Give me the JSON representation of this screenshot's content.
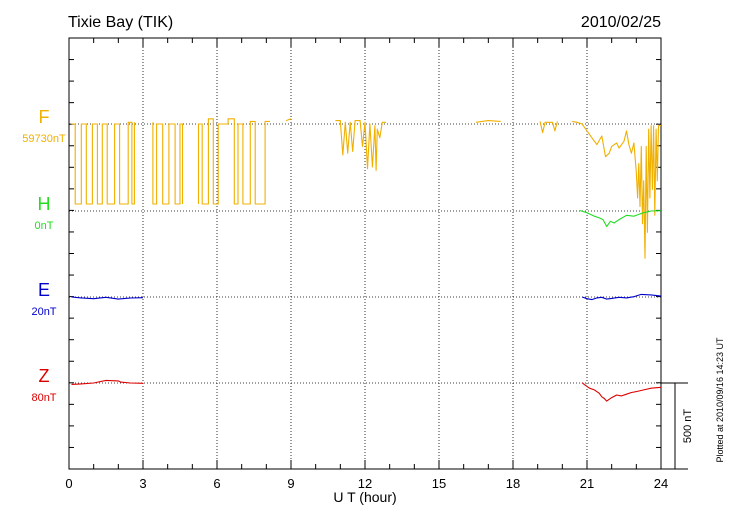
{
  "chart_data": {
    "type": "line",
    "title": "Tixie Bay (TIK)",
    "date": "2010/02/25",
    "xlabel": "U T (hour)",
    "xlim": [
      0,
      24
    ],
    "xticks": [
      0,
      3,
      6,
      9,
      12,
      15,
      18,
      21,
      24
    ],
    "grid": true,
    "footnote": "Plotted at 2010/09/16 14:23 UT",
    "scale_bar": {
      "label": "500 nT",
      "nT": 500
    },
    "series": [
      {
        "name": "F",
        "baseline_label": "59730nT",
        "color": "#f0b000",
        "baseline_nT": 59730,
        "points": [
          [
            0.1,
            59730
          ],
          [
            0.25,
            59730
          ],
          [
            0.25,
            59265
          ],
          [
            0.5,
            59265
          ],
          [
            0.5,
            59730
          ],
          [
            0.7,
            59730
          ],
          [
            0.7,
            59265
          ],
          [
            0.95,
            59265
          ],
          [
            0.95,
            59730
          ],
          [
            1.15,
            59730
          ],
          [
            1.15,
            59265
          ],
          [
            1.35,
            59265
          ],
          [
            1.35,
            59730
          ],
          [
            1.55,
            59730
          ],
          [
            1.55,
            59265
          ],
          [
            1.85,
            59265
          ],
          [
            1.85,
            59730
          ],
          [
            2.05,
            59730
          ],
          [
            2.05,
            59265
          ],
          [
            2.4,
            59265
          ],
          [
            2.4,
            59740
          ],
          [
            2.55,
            59740
          ],
          [
            2.55,
            59265
          ],
          [
            2.65,
            59265
          ],
          [
            2.65,
            59740
          ],
          [
            3.4,
            59740
          ],
          [
            3.4,
            59265
          ],
          [
            3.55,
            59265
          ],
          [
            3.55,
            59730
          ],
          [
            3.8,
            59730
          ],
          [
            3.8,
            59265
          ],
          [
            4.05,
            59265
          ],
          [
            4.05,
            59730
          ],
          [
            4.3,
            59730
          ],
          [
            4.3,
            59265
          ],
          [
            4.5,
            59265
          ],
          [
            4.5,
            59730
          ],
          [
            4.6,
            59730
          ],
          [
            4.6,
            59265
          ],
          [
            5.25,
            59265
          ],
          [
            5.25,
            59730
          ],
          [
            5.4,
            59730
          ],
          [
            5.4,
            59265
          ],
          [
            5.65,
            59265
          ],
          [
            5.65,
            59760
          ],
          [
            5.85,
            59760
          ],
          [
            5.85,
            59265
          ],
          [
            6.05,
            59265
          ],
          [
            6.05,
            59730
          ],
          [
            6.45,
            59730
          ],
          [
            6.45,
            59760
          ],
          [
            6.7,
            59760
          ],
          [
            6.7,
            59265
          ],
          [
            6.85,
            59265
          ],
          [
            6.85,
            59730
          ],
          [
            7.05,
            59730
          ],
          [
            7.05,
            59265
          ],
          [
            7.35,
            59265
          ],
          [
            7.35,
            59745
          ],
          [
            7.55,
            59745
          ],
          [
            7.55,
            59265
          ],
          [
            7.95,
            59265
          ],
          [
            7.95,
            59745
          ],
          [
            8.15,
            59745
          ],
          [
            8.8,
            59750
          ],
          [
            9.0,
            59760
          ],
          [
            10.0,
            59755
          ],
          [
            10.8,
            59750
          ],
          [
            11.0,
            59750
          ],
          [
            11.1,
            59550
          ],
          [
            11.2,
            59740
          ],
          [
            11.3,
            59560
          ],
          [
            11.4,
            59740
          ],
          [
            11.5,
            59570
          ],
          [
            11.6,
            59750
          ],
          [
            11.8,
            59750
          ],
          [
            11.9,
            59600
          ],
          [
            12.0,
            59740
          ],
          [
            12.1,
            59470
          ],
          [
            12.2,
            59730
          ],
          [
            12.3,
            59480
          ],
          [
            12.4,
            59720
          ],
          [
            12.45,
            59460
          ],
          [
            12.5,
            59700
          ],
          [
            12.6,
            59650
          ],
          [
            12.7,
            59740
          ],
          [
            12.85,
            59740
          ],
          [
            13.5,
            59745
          ],
          [
            14.5,
            59740
          ],
          [
            15.5,
            59745
          ],
          [
            16.5,
            59740
          ],
          [
            17.0,
            59750
          ],
          [
            17.5,
            59745
          ],
          [
            18.3,
            59740
          ],
          [
            19.1,
            59745
          ],
          [
            19.2,
            59680
          ],
          [
            19.3,
            59740
          ],
          [
            19.6,
            59740
          ],
          [
            19.7,
            59690
          ],
          [
            19.8,
            59745
          ],
          [
            20.4,
            59745
          ],
          [
            20.6,
            59740
          ],
          [
            20.8,
            59730
          ],
          [
            21.0,
            59690
          ],
          [
            21.2,
            59650
          ],
          [
            21.4,
            59610
          ],
          [
            21.6,
            59660
          ],
          [
            21.75,
            59540
          ],
          [
            21.9,
            59560
          ],
          [
            22.0,
            59600
          ],
          [
            22.2,
            59620
          ],
          [
            22.3,
            59590
          ],
          [
            22.5,
            59630
          ],
          [
            22.6,
            59690
          ],
          [
            22.7,
            59610
          ],
          [
            22.8,
            59560
          ],
          [
            22.9,
            59620
          ],
          [
            23.0,
            59450
          ],
          [
            23.05,
            59300
          ],
          [
            23.1,
            59500
          ],
          [
            23.15,
            59250
          ],
          [
            23.2,
            59600
          ],
          [
            23.25,
            59150
          ],
          [
            23.3,
            59400
          ],
          [
            23.35,
            58950
          ],
          [
            23.4,
            59600
          ],
          [
            23.45,
            59100
          ],
          [
            23.5,
            59700
          ],
          [
            23.55,
            59300
          ],
          [
            23.6,
            59720
          ],
          [
            23.65,
            59350
          ],
          [
            23.7,
            59720
          ],
          [
            23.75,
            59200
          ],
          [
            23.8,
            59700
          ],
          [
            23.85,
            59400
          ],
          [
            23.9,
            59720
          ],
          [
            24.0,
            59720
          ]
        ]
      },
      {
        "name": "H",
        "baseline_label": "0nT",
        "color": "#22dd22",
        "baseline_nT": 0,
        "points": [
          [
            0.1,
            0
          ],
          [
            1.0,
            -2
          ],
          [
            2.0,
            -5
          ],
          [
            3.0,
            -5
          ],
          [
            4.5,
            0
          ],
          [
            6.0,
            0
          ],
          [
            7.5,
            2
          ],
          [
            9.0,
            3
          ],
          [
            10.5,
            5
          ],
          [
            12.0,
            2
          ],
          [
            13.5,
            5
          ],
          [
            15.0,
            2
          ],
          [
            16.5,
            3
          ],
          [
            18.0,
            2
          ],
          [
            19.5,
            0
          ],
          [
            20.7,
            3
          ],
          [
            21.0,
            -10
          ],
          [
            21.3,
            -30
          ],
          [
            21.5,
            -40
          ],
          [
            21.65,
            -50
          ],
          [
            21.8,
            -90
          ],
          [
            21.95,
            -60
          ],
          [
            22.1,
            -70
          ],
          [
            22.3,
            -50
          ],
          [
            22.6,
            -25
          ],
          [
            22.9,
            -30
          ],
          [
            23.1,
            -20
          ],
          [
            23.3,
            -10
          ],
          [
            23.6,
            0
          ],
          [
            24.0,
            2
          ]
        ]
      },
      {
        "name": "E",
        "baseline_label": "20nT",
        "color": "#0000cc",
        "baseline_nT": 20,
        "points": [
          [
            0.1,
            20
          ],
          [
            0.5,
            15
          ],
          [
            1.0,
            10
          ],
          [
            1.5,
            18
          ],
          [
            2.0,
            8
          ],
          [
            2.5,
            14
          ],
          [
            3.0,
            16
          ],
          [
            4.0,
            22
          ],
          [
            5.0,
            18
          ],
          [
            6.0,
            20
          ],
          [
            7.5,
            16
          ],
          [
            9.0,
            22
          ],
          [
            10.5,
            26
          ],
          [
            12.0,
            20
          ],
          [
            13.5,
            23
          ],
          [
            15.0,
            21
          ],
          [
            16.5,
            23
          ],
          [
            18.0,
            20
          ],
          [
            19.5,
            23
          ],
          [
            20.8,
            20
          ],
          [
            21.0,
            10
          ],
          [
            21.2,
            5
          ],
          [
            21.4,
            15
          ],
          [
            21.6,
            18
          ],
          [
            21.8,
            8
          ],
          [
            22.0,
            12
          ],
          [
            22.3,
            18
          ],
          [
            22.6,
            15
          ],
          [
            22.9,
            22
          ],
          [
            23.2,
            35
          ],
          [
            23.6,
            32
          ],
          [
            24.0,
            25
          ]
        ]
      },
      {
        "name": "Z",
        "baseline_label": "80nT",
        "color": "#dd0000",
        "baseline_nT": 80,
        "points": [
          [
            0.1,
            72
          ],
          [
            0.5,
            75
          ],
          [
            1.0,
            80
          ],
          [
            1.5,
            95
          ],
          [
            2.0,
            92
          ],
          [
            2.1,
            85
          ],
          [
            2.5,
            80
          ],
          [
            3.0,
            78
          ],
          [
            4.0,
            82
          ],
          [
            5.0,
            80
          ],
          [
            6.0,
            80
          ],
          [
            7.5,
            82
          ],
          [
            9.0,
            82
          ],
          [
            10.5,
            84
          ],
          [
            12.0,
            84
          ],
          [
            13.0,
            80
          ],
          [
            14.0,
            82
          ],
          [
            15.0,
            80
          ],
          [
            16.0,
            78
          ],
          [
            17.0,
            84
          ],
          [
            18.0,
            80
          ],
          [
            19.0,
            82
          ],
          [
            20.0,
            80
          ],
          [
            20.8,
            82
          ],
          [
            20.9,
            70
          ],
          [
            21.1,
            50
          ],
          [
            21.3,
            40
          ],
          [
            21.5,
            20
          ],
          [
            21.6,
            0
          ],
          [
            21.7,
            -10
          ],
          [
            21.8,
            -25
          ],
          [
            21.9,
            -15
          ],
          [
            22.0,
            -5
          ],
          [
            22.2,
            10
          ],
          [
            22.4,
            5
          ],
          [
            22.6,
            15
          ],
          [
            22.8,
            25
          ],
          [
            23.0,
            30
          ],
          [
            23.3,
            40
          ],
          [
            23.6,
            50
          ],
          [
            24.0,
            55
          ]
        ]
      }
    ]
  }
}
